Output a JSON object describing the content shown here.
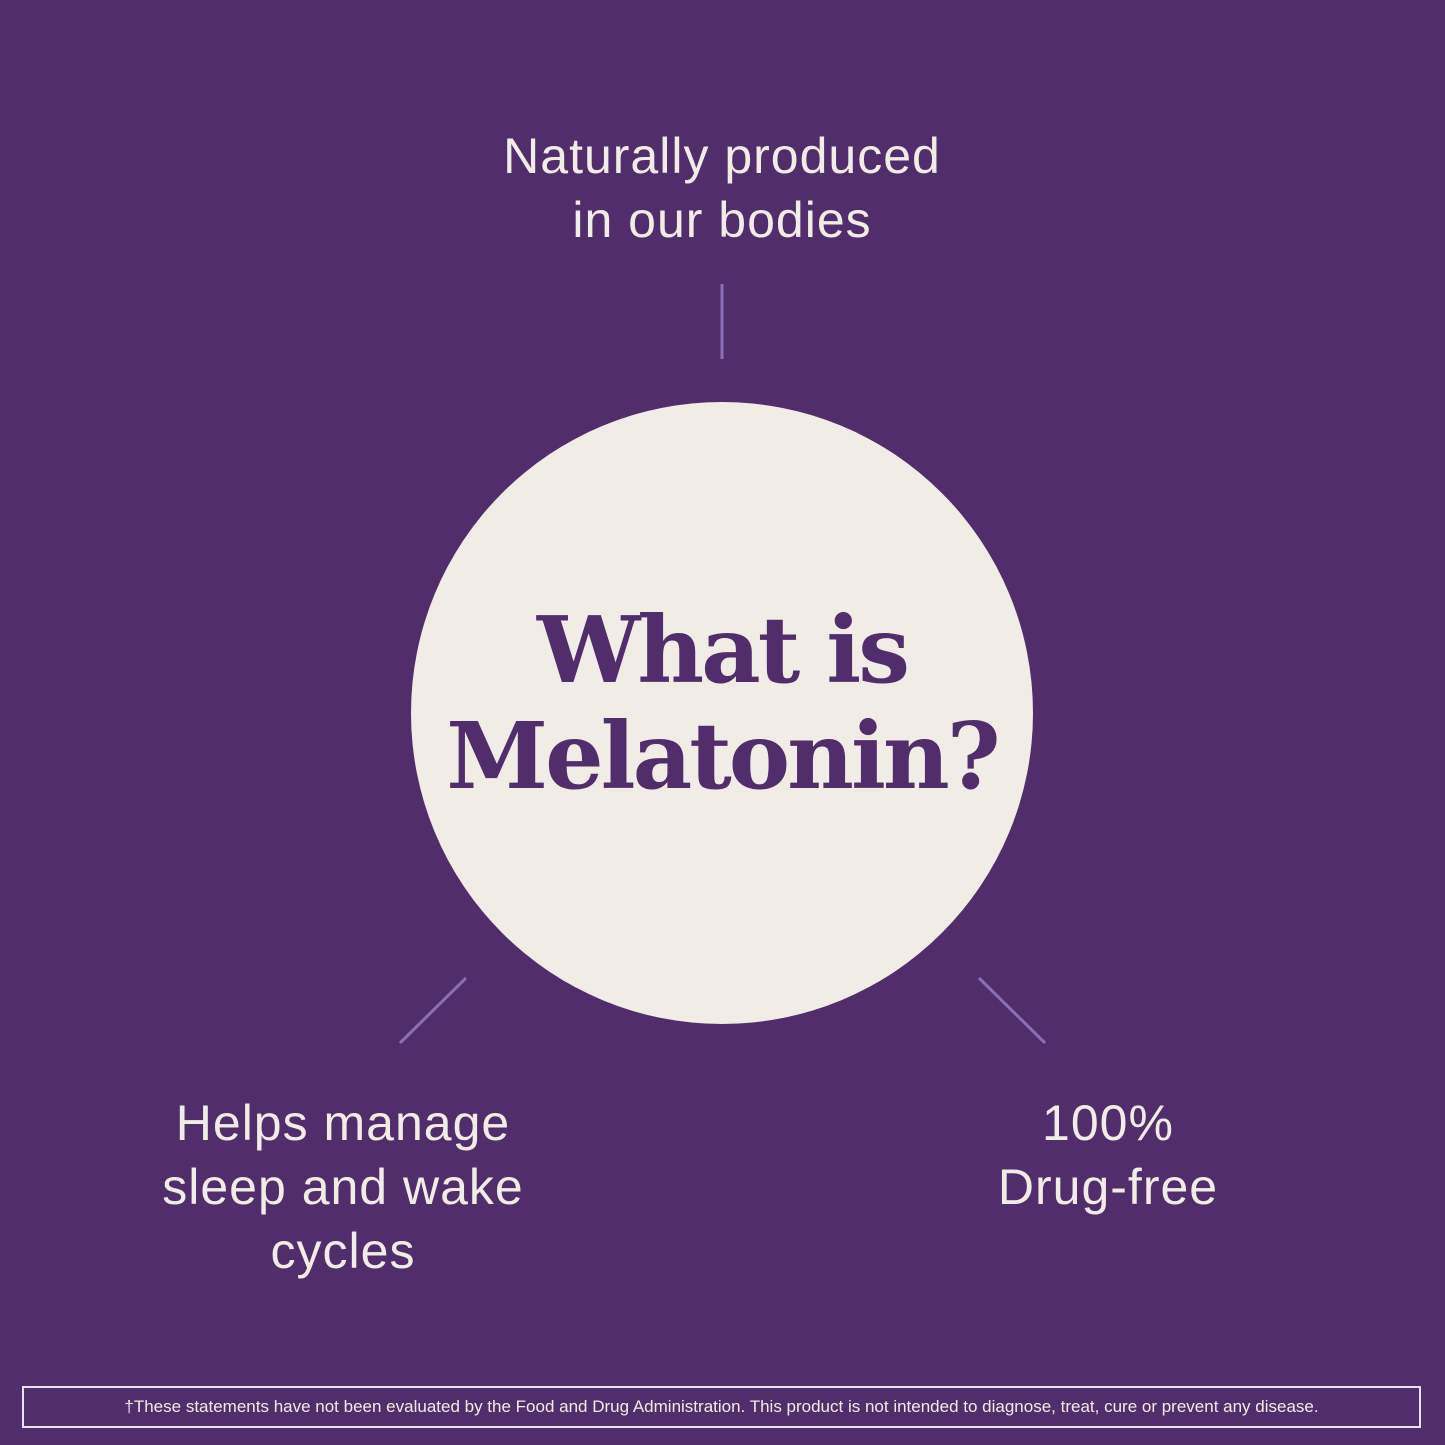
{
  "colors": {
    "background": "#522d6b",
    "circle": "#f2ece7",
    "connector": "#8a6fb8",
    "text": "#f2ece7"
  },
  "title": {
    "line1": "What is",
    "line2": "Melatonin?"
  },
  "facts": {
    "top": {
      "line1": "Naturally produced",
      "line2": "in our bodies"
    },
    "left": {
      "line1": "Helps manage",
      "line2": "sleep and wake",
      "line3": "cycles"
    },
    "right": {
      "line1": "100%",
      "line2": "Drug-free"
    }
  },
  "disclaimer": "†These statements have not been evaluated by the Food and Drug Administration. This product is not intended to diagnose, treat, cure or prevent any disease."
}
